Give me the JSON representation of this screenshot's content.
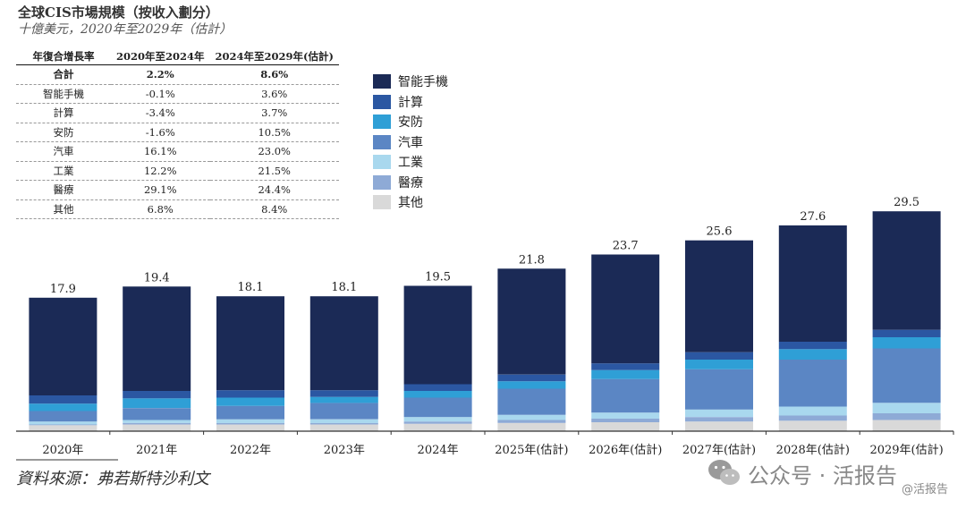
{
  "title": "全球CIS市場規模（按收入劃分）",
  "subtitle": "十億美元，2020年至2029年（估計）",
  "growth_table": {
    "headers": [
      "年復合增長率",
      "2020年至2024年",
      "2024年至2029年(估計)"
    ],
    "rows": [
      {
        "segment": "合計",
        "cagr_2020_2024": "2.2%",
        "cagr_2024_2029": "8.6%"
      },
      {
        "segment": "智能手機",
        "cagr_2020_2024": "-0.1%",
        "cagr_2024_2029": "3.6%"
      },
      {
        "segment": "計算",
        "cagr_2020_2024": "-3.4%",
        "cagr_2024_2029": "3.7%"
      },
      {
        "segment": "安防",
        "cagr_2020_2024": "-1.6%",
        "cagr_2024_2029": "10.5%"
      },
      {
        "segment": "汽車",
        "cagr_2020_2024": "16.1%",
        "cagr_2024_2029": "23.0%"
      },
      {
        "segment": "工業",
        "cagr_2020_2024": "12.2%",
        "cagr_2024_2029": "21.5%"
      },
      {
        "segment": "醫療",
        "cagr_2020_2024": "29.1%",
        "cagr_2024_2029": "24.4%"
      },
      {
        "segment": "其他",
        "cagr_2020_2024": "6.8%",
        "cagr_2024_2029": "8.4%"
      }
    ]
  },
  "chart_data": {
    "type": "bar",
    "stacked": true,
    "categories": [
      "2020年",
      "2021年",
      "2022年",
      "2023年",
      "2024年",
      "2025年(估計)",
      "2026年(估計)",
      "2027年(估計)",
      "2028年(估計)",
      "2029年(估計)"
    ],
    "totals": [
      17.9,
      19.4,
      18.1,
      18.1,
      19.5,
      21.8,
      23.7,
      25.6,
      27.6,
      29.5
    ],
    "series": [
      {
        "name": "其他",
        "color": "#d9d9d9",
        "values": [
          0.8,
          0.9,
          0.9,
          0.9,
          1.0,
          1.1,
          1.2,
          1.3,
          1.4,
          1.5
        ]
      },
      {
        "name": "醫療",
        "color": "#8eaad6",
        "values": [
          0.1,
          0.2,
          0.2,
          0.2,
          0.3,
          0.4,
          0.5,
          0.6,
          0.7,
          0.9
        ]
      },
      {
        "name": "工業",
        "color": "#a9d8ee",
        "values": [
          0.4,
          0.4,
          0.5,
          0.5,
          0.6,
          0.7,
          0.8,
          1.0,
          1.2,
          1.4
        ]
      },
      {
        "name": "汽車",
        "color": "#5b86c4",
        "values": [
          1.4,
          1.6,
          1.8,
          2.2,
          2.6,
          3.5,
          4.5,
          5.4,
          6.3,
          7.3
        ]
      },
      {
        "name": "安防",
        "color": "#2f9fd6",
        "values": [
          1.0,
          1.3,
          1.1,
          0.8,
          0.9,
          1.0,
          1.2,
          1.3,
          1.4,
          1.5
        ]
      },
      {
        "name": "計算",
        "color": "#2b57a2",
        "values": [
          1.1,
          1.0,
          1.0,
          0.9,
          0.9,
          0.9,
          0.9,
          1.0,
          1.0,
          1.0
        ]
      },
      {
        "name": "智能手機",
        "color": "#1b2a56",
        "values": [
          13.1,
          14.0,
          12.6,
          12.6,
          13.2,
          14.2,
          14.6,
          15.0,
          15.6,
          15.9
        ]
      }
    ],
    "legend_order": [
      "智能手機",
      "計算",
      "安防",
      "汽車",
      "工業",
      "醫療",
      "其他"
    ],
    "ylim": [
      0,
      30
    ],
    "xlabel": "",
    "ylabel": "",
    "grid": false,
    "legend_position": "top-center"
  },
  "source": "資料來源：弗若斯特沙利文",
  "watermark": {
    "text": "公众号 · 活报告",
    "handle": "@活报告",
    "icon": "wechat-icon"
  }
}
